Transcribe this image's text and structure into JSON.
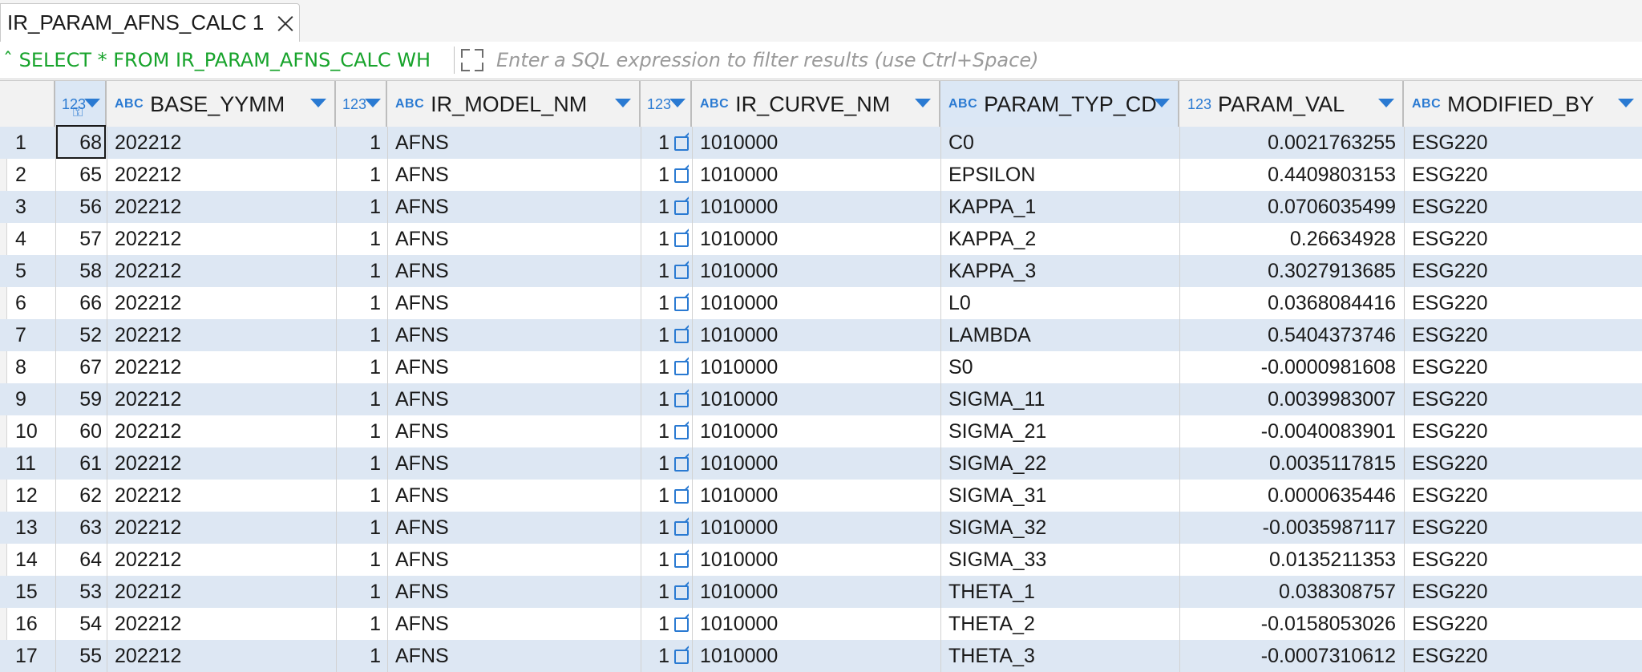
{
  "tab": {
    "title": "IR_PARAM_AFNS_CALC 1"
  },
  "filter": {
    "sql": "SELECT * FROM IR_PARAM_AFNS_CALC WH",
    "placeholder": "Enter a SQL expression to filter results (use Ctrl+Space)"
  },
  "columns": {
    "id_type": "123",
    "base_yymm": {
      "type": "ABC",
      "label": "BASE_YYMM"
    },
    "c3_type": "123",
    "ir_model_nm": {
      "type": "ABC",
      "label": "IR_MODEL_NM"
    },
    "c5_type": "123",
    "ir_curve_nm": {
      "type": "ABC",
      "label": "IR_CURVE_NM"
    },
    "param_typ_cd": {
      "type": "ABC",
      "label": "PARAM_TYP_CD"
    },
    "param_val": {
      "type": "123",
      "label": "PARAM_VAL"
    },
    "modified_by": {
      "type": "ABC",
      "label": "MODIFIED_BY"
    }
  },
  "rows": [
    {
      "n": "1",
      "id": "68",
      "base": "202212",
      "c3": "1",
      "model": "AFNS",
      "c5": "1",
      "curve": "1010000",
      "typ": "C0",
      "val": "0.0021763255",
      "by": "ESG220"
    },
    {
      "n": "2",
      "id": "65",
      "base": "202212",
      "c3": "1",
      "model": "AFNS",
      "c5": "1",
      "curve": "1010000",
      "typ": "EPSILON",
      "val": "0.4409803153",
      "by": "ESG220"
    },
    {
      "n": "3",
      "id": "56",
      "base": "202212",
      "c3": "1",
      "model": "AFNS",
      "c5": "1",
      "curve": "1010000",
      "typ": "KAPPA_1",
      "val": "0.0706035499",
      "by": "ESG220"
    },
    {
      "n": "4",
      "id": "57",
      "base": "202212",
      "c3": "1",
      "model": "AFNS",
      "c5": "1",
      "curve": "1010000",
      "typ": "KAPPA_2",
      "val": "0.26634928",
      "by": "ESG220"
    },
    {
      "n": "5",
      "id": "58",
      "base": "202212",
      "c3": "1",
      "model": "AFNS",
      "c5": "1",
      "curve": "1010000",
      "typ": "KAPPA_3",
      "val": "0.3027913685",
      "by": "ESG220"
    },
    {
      "n": "6",
      "id": "66",
      "base": "202212",
      "c3": "1",
      "model": "AFNS",
      "c5": "1",
      "curve": "1010000",
      "typ": "L0",
      "val": "0.0368084416",
      "by": "ESG220"
    },
    {
      "n": "7",
      "id": "52",
      "base": "202212",
      "c3": "1",
      "model": "AFNS",
      "c5": "1",
      "curve": "1010000",
      "typ": "LAMBDA",
      "val": "0.5404373746",
      "by": "ESG220"
    },
    {
      "n": "8",
      "id": "67",
      "base": "202212",
      "c3": "1",
      "model": "AFNS",
      "c5": "1",
      "curve": "1010000",
      "typ": "S0",
      "val": "-0.0000981608",
      "by": "ESG220"
    },
    {
      "n": "9",
      "id": "59",
      "base": "202212",
      "c3": "1",
      "model": "AFNS",
      "c5": "1",
      "curve": "1010000",
      "typ": "SIGMA_11",
      "val": "0.0039983007",
      "by": "ESG220"
    },
    {
      "n": "10",
      "id": "60",
      "base": "202212",
      "c3": "1",
      "model": "AFNS",
      "c5": "1",
      "curve": "1010000",
      "typ": "SIGMA_21",
      "val": "-0.0040083901",
      "by": "ESG220"
    },
    {
      "n": "11",
      "id": "61",
      "base": "202212",
      "c3": "1",
      "model": "AFNS",
      "c5": "1",
      "curve": "1010000",
      "typ": "SIGMA_22",
      "val": "0.0035117815",
      "by": "ESG220"
    },
    {
      "n": "12",
      "id": "62",
      "base": "202212",
      "c3": "1",
      "model": "AFNS",
      "c5": "1",
      "curve": "1010000",
      "typ": "SIGMA_31",
      "val": "0.0000635446",
      "by": "ESG220"
    },
    {
      "n": "13",
      "id": "63",
      "base": "202212",
      "c3": "1",
      "model": "AFNS",
      "c5": "1",
      "curve": "1010000",
      "typ": "SIGMA_32",
      "val": "-0.0035987117",
      "by": "ESG220"
    },
    {
      "n": "14",
      "id": "64",
      "base": "202212",
      "c3": "1",
      "model": "AFNS",
      "c5": "1",
      "curve": "1010000",
      "typ": "SIGMA_33",
      "val": "0.0135211353",
      "by": "ESG220"
    },
    {
      "n": "15",
      "id": "53",
      "base": "202212",
      "c3": "1",
      "model": "AFNS",
      "c5": "1",
      "curve": "1010000",
      "typ": "THETA_1",
      "val": "0.038308757",
      "by": "ESG220"
    },
    {
      "n": "16",
      "id": "54",
      "base": "202212",
      "c3": "1",
      "model": "AFNS",
      "c5": "1",
      "curve": "1010000",
      "typ": "THETA_2",
      "val": "-0.0158053026",
      "by": "ESG220"
    },
    {
      "n": "17",
      "id": "55",
      "base": "202212",
      "c3": "1",
      "model": "AFNS",
      "c5": "1",
      "curve": "1010000",
      "typ": "THETA_3",
      "val": "-0.0007310612",
      "by": "ESG220"
    }
  ],
  "colors": {
    "accent": "#2a7ad2",
    "sql": "#17a32b",
    "alt_row": "#dde7f3"
  }
}
